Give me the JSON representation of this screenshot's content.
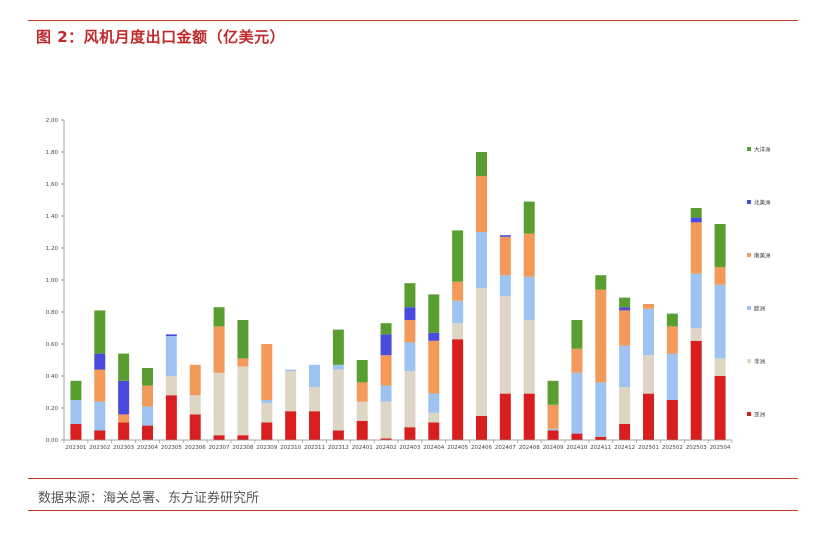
{
  "header": {
    "title": "图 2：风机月度出口金额（亿美元）"
  },
  "footer": {
    "source": "数据来源：海关总署、东方证券研究所"
  },
  "colors": {
    "大洋洲": "#5a9e32",
    "北美洲": "#4a4adc",
    "南美洲": "#f39a5a",
    "欧洲": "#9fc3f0",
    "非洲": "#ddd6c4",
    "亚洲": "#d81e1e"
  },
  "chart_data": {
    "type": "bar",
    "stacked": true,
    "title": "",
    "xlabel": "",
    "ylabel": "",
    "ylim": [
      0,
      2
    ],
    "yticks": [
      "0.00",
      "0.20",
      "0.40",
      "0.60",
      "0.80",
      "1.00",
      "1.20",
      "1.40",
      "1.60",
      "1.80",
      "2.00"
    ],
    "legend_position": "right",
    "categories": [
      "202301",
      "202302",
      "202303",
      "202304",
      "202305",
      "202306",
      "202307",
      "202308",
      "202309",
      "202310",
      "202311",
      "202312",
      "202401",
      "202402",
      "202403",
      "202404",
      "202405",
      "202406",
      "202407",
      "202408",
      "202409",
      "202410",
      "202411",
      "202412",
      "202501",
      "202502",
      "202503",
      "202504"
    ],
    "series": [
      {
        "name": "亚洲",
        "values": [
          0.1,
          0.06,
          0.11,
          0.09,
          0.28,
          0.16,
          0.03,
          0.03,
          0.11,
          0.18,
          0.18,
          0.06,
          0.12,
          0.01,
          0.08,
          0.11,
          0.63,
          0.15,
          0.29,
          0.29,
          0.06,
          0.04,
          0.02,
          0.1,
          0.29,
          0.25,
          0.62,
          0.4
        ]
      },
      {
        "name": "非洲",
        "values": [
          0.0,
          0.0,
          0.0,
          0.0,
          0.12,
          0.12,
          0.39,
          0.43,
          0.12,
          0.25,
          0.15,
          0.38,
          0.12,
          0.23,
          0.35,
          0.06,
          0.1,
          0.8,
          0.61,
          0.46,
          0.0,
          0.0,
          0.0,
          0.23,
          0.24,
          0.0,
          0.08,
          0.11
        ]
      },
      {
        "name": "欧洲",
        "values": [
          0.15,
          0.18,
          0.0,
          0.12,
          0.25,
          0.0,
          0.0,
          0.0,
          0.02,
          0.01,
          0.14,
          0.03,
          0.0,
          0.1,
          0.18,
          0.12,
          0.14,
          0.35,
          0.13,
          0.27,
          0.01,
          0.38,
          0.34,
          0.26,
          0.29,
          0.29,
          0.34,
          0.46
        ]
      },
      {
        "name": "南美洲",
        "values": [
          0.0,
          0.2,
          0.05,
          0.13,
          0.0,
          0.19,
          0.29,
          0.05,
          0.35,
          0.0,
          0.0,
          0.0,
          0.12,
          0.19,
          0.14,
          0.33,
          0.12,
          0.35,
          0.24,
          0.27,
          0.15,
          0.15,
          0.58,
          0.22,
          0.03,
          0.17,
          0.32,
          0.11
        ]
      },
      {
        "name": "北美洲",
        "values": [
          0.0,
          0.1,
          0.21,
          0.0,
          0.01,
          0.0,
          0.0,
          0.0,
          0.0,
          0.0,
          0.0,
          0.0,
          0.0,
          0.13,
          0.08,
          0.05,
          0.0,
          0.0,
          0.01,
          0.0,
          0.0,
          0.0,
          0.0,
          0.02,
          0.0,
          0.0,
          0.03,
          0.0
        ]
      },
      {
        "name": "大洋洲",
        "values": [
          0.12,
          0.27,
          0.17,
          0.11,
          0.0,
          0.0,
          0.12,
          0.24,
          0.0,
          0.0,
          0.0,
          0.22,
          0.14,
          0.07,
          0.15,
          0.24,
          0.32,
          0.15,
          0.0,
          0.2,
          0.15,
          0.18,
          0.09,
          0.06,
          0.0,
          0.08,
          0.06,
          0.27
        ]
      }
    ]
  }
}
